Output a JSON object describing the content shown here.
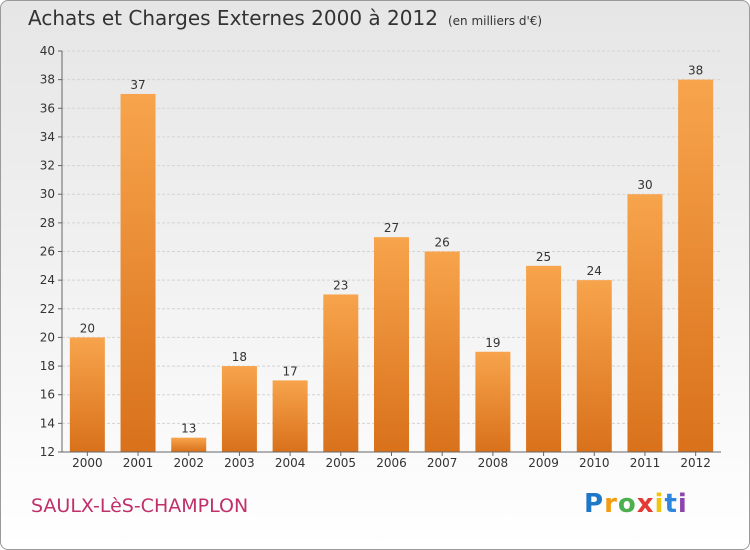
{
  "title": "Achats et Charges Externes 2000 à 2012",
  "subtitle": "(en milliers d'€)",
  "commune": "SAULX-LèS-CHAMPLON",
  "logo": {
    "text": "Proxiti",
    "letters": [
      "P",
      "r",
      "o",
      "x",
      "i",
      "t",
      "i"
    ]
  },
  "colors": {
    "bar_light": "#f7a44c",
    "bar_dark": "#d9711b",
    "commune": "#c0306a"
  },
  "chart_data": {
    "type": "bar",
    "categories": [
      "2000",
      "2001",
      "2002",
      "2003",
      "2004",
      "2005",
      "2006",
      "2007",
      "2008",
      "2009",
      "2010",
      "2011",
      "2012"
    ],
    "values": [
      20,
      37,
      13,
      18,
      17,
      23,
      27,
      26,
      19,
      25,
      24,
      30,
      38
    ],
    "data_labels": [
      "20",
      "37",
      "13",
      "18",
      "17",
      "23",
      "27",
      "26",
      "19",
      "25",
      "24",
      "30",
      "38"
    ],
    "y_ticks": [
      "12",
      "14",
      "16",
      "18",
      "20",
      "22",
      "24",
      "26",
      "28",
      "30",
      "32",
      "34",
      "36",
      "38",
      "40"
    ],
    "ylim": [
      12,
      40
    ],
    "grid": true
  }
}
